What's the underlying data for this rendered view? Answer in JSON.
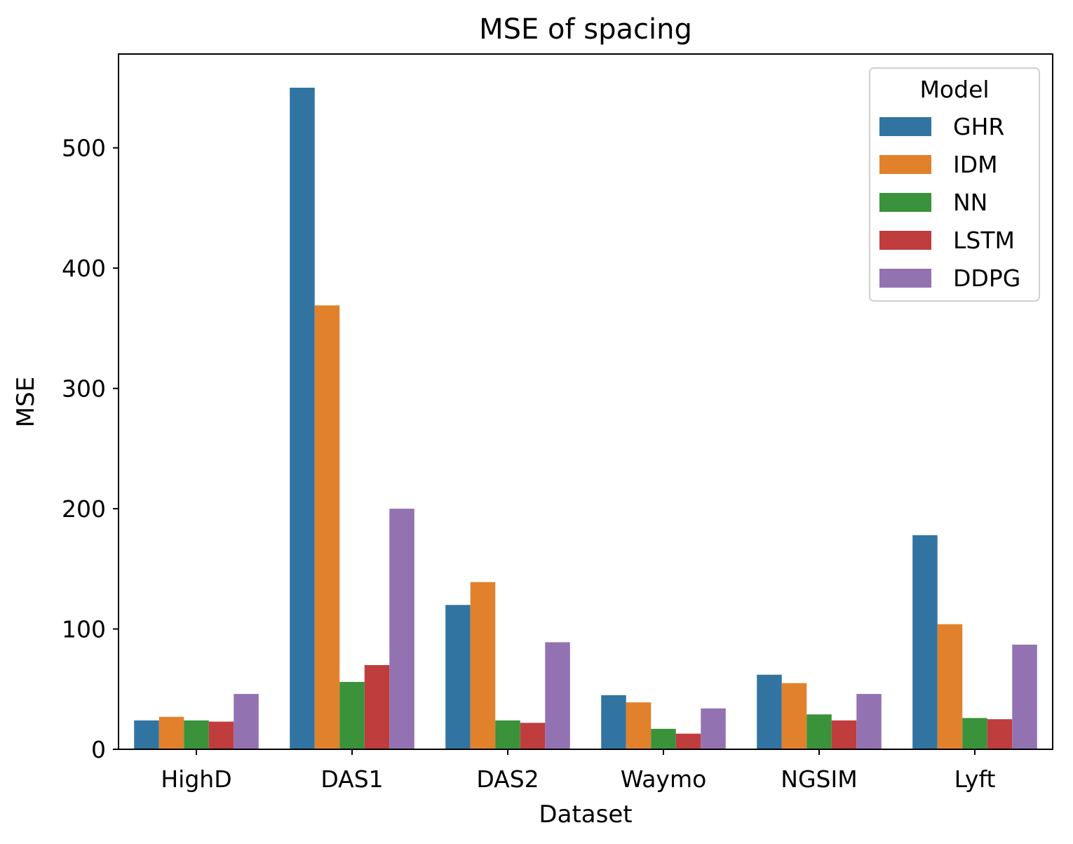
{
  "chart_data": {
    "type": "bar",
    "title": "MSE of spacing",
    "xlabel": "Dataset",
    "ylabel": "MSE",
    "ylim": [
      0,
      578
    ],
    "yticks": [
      0,
      100,
      200,
      300,
      400,
      500
    ],
    "categories": [
      "HighD",
      "DAS1",
      "DAS2",
      "Waymo",
      "NGSIM",
      "Lyft"
    ],
    "legend": {
      "title": "Model",
      "placement": "top-right"
    },
    "series": [
      {
        "name": "GHR",
        "color": "#3274a1",
        "values": [
          24,
          550,
          120,
          45,
          62,
          178
        ]
      },
      {
        "name": "IDM",
        "color": "#e1812c",
        "values": [
          27,
          369,
          139,
          39,
          55,
          104
        ]
      },
      {
        "name": "NN",
        "color": "#3a923a",
        "values": [
          24,
          56,
          24,
          17,
          29,
          26
        ]
      },
      {
        "name": "LSTM",
        "color": "#c03d3e",
        "values": [
          23,
          70,
          22,
          13,
          24,
          25
        ]
      },
      {
        "name": "DDPG",
        "color": "#9372b2",
        "values": [
          46,
          200,
          89,
          34,
          46,
          87
        ]
      }
    ]
  }
}
